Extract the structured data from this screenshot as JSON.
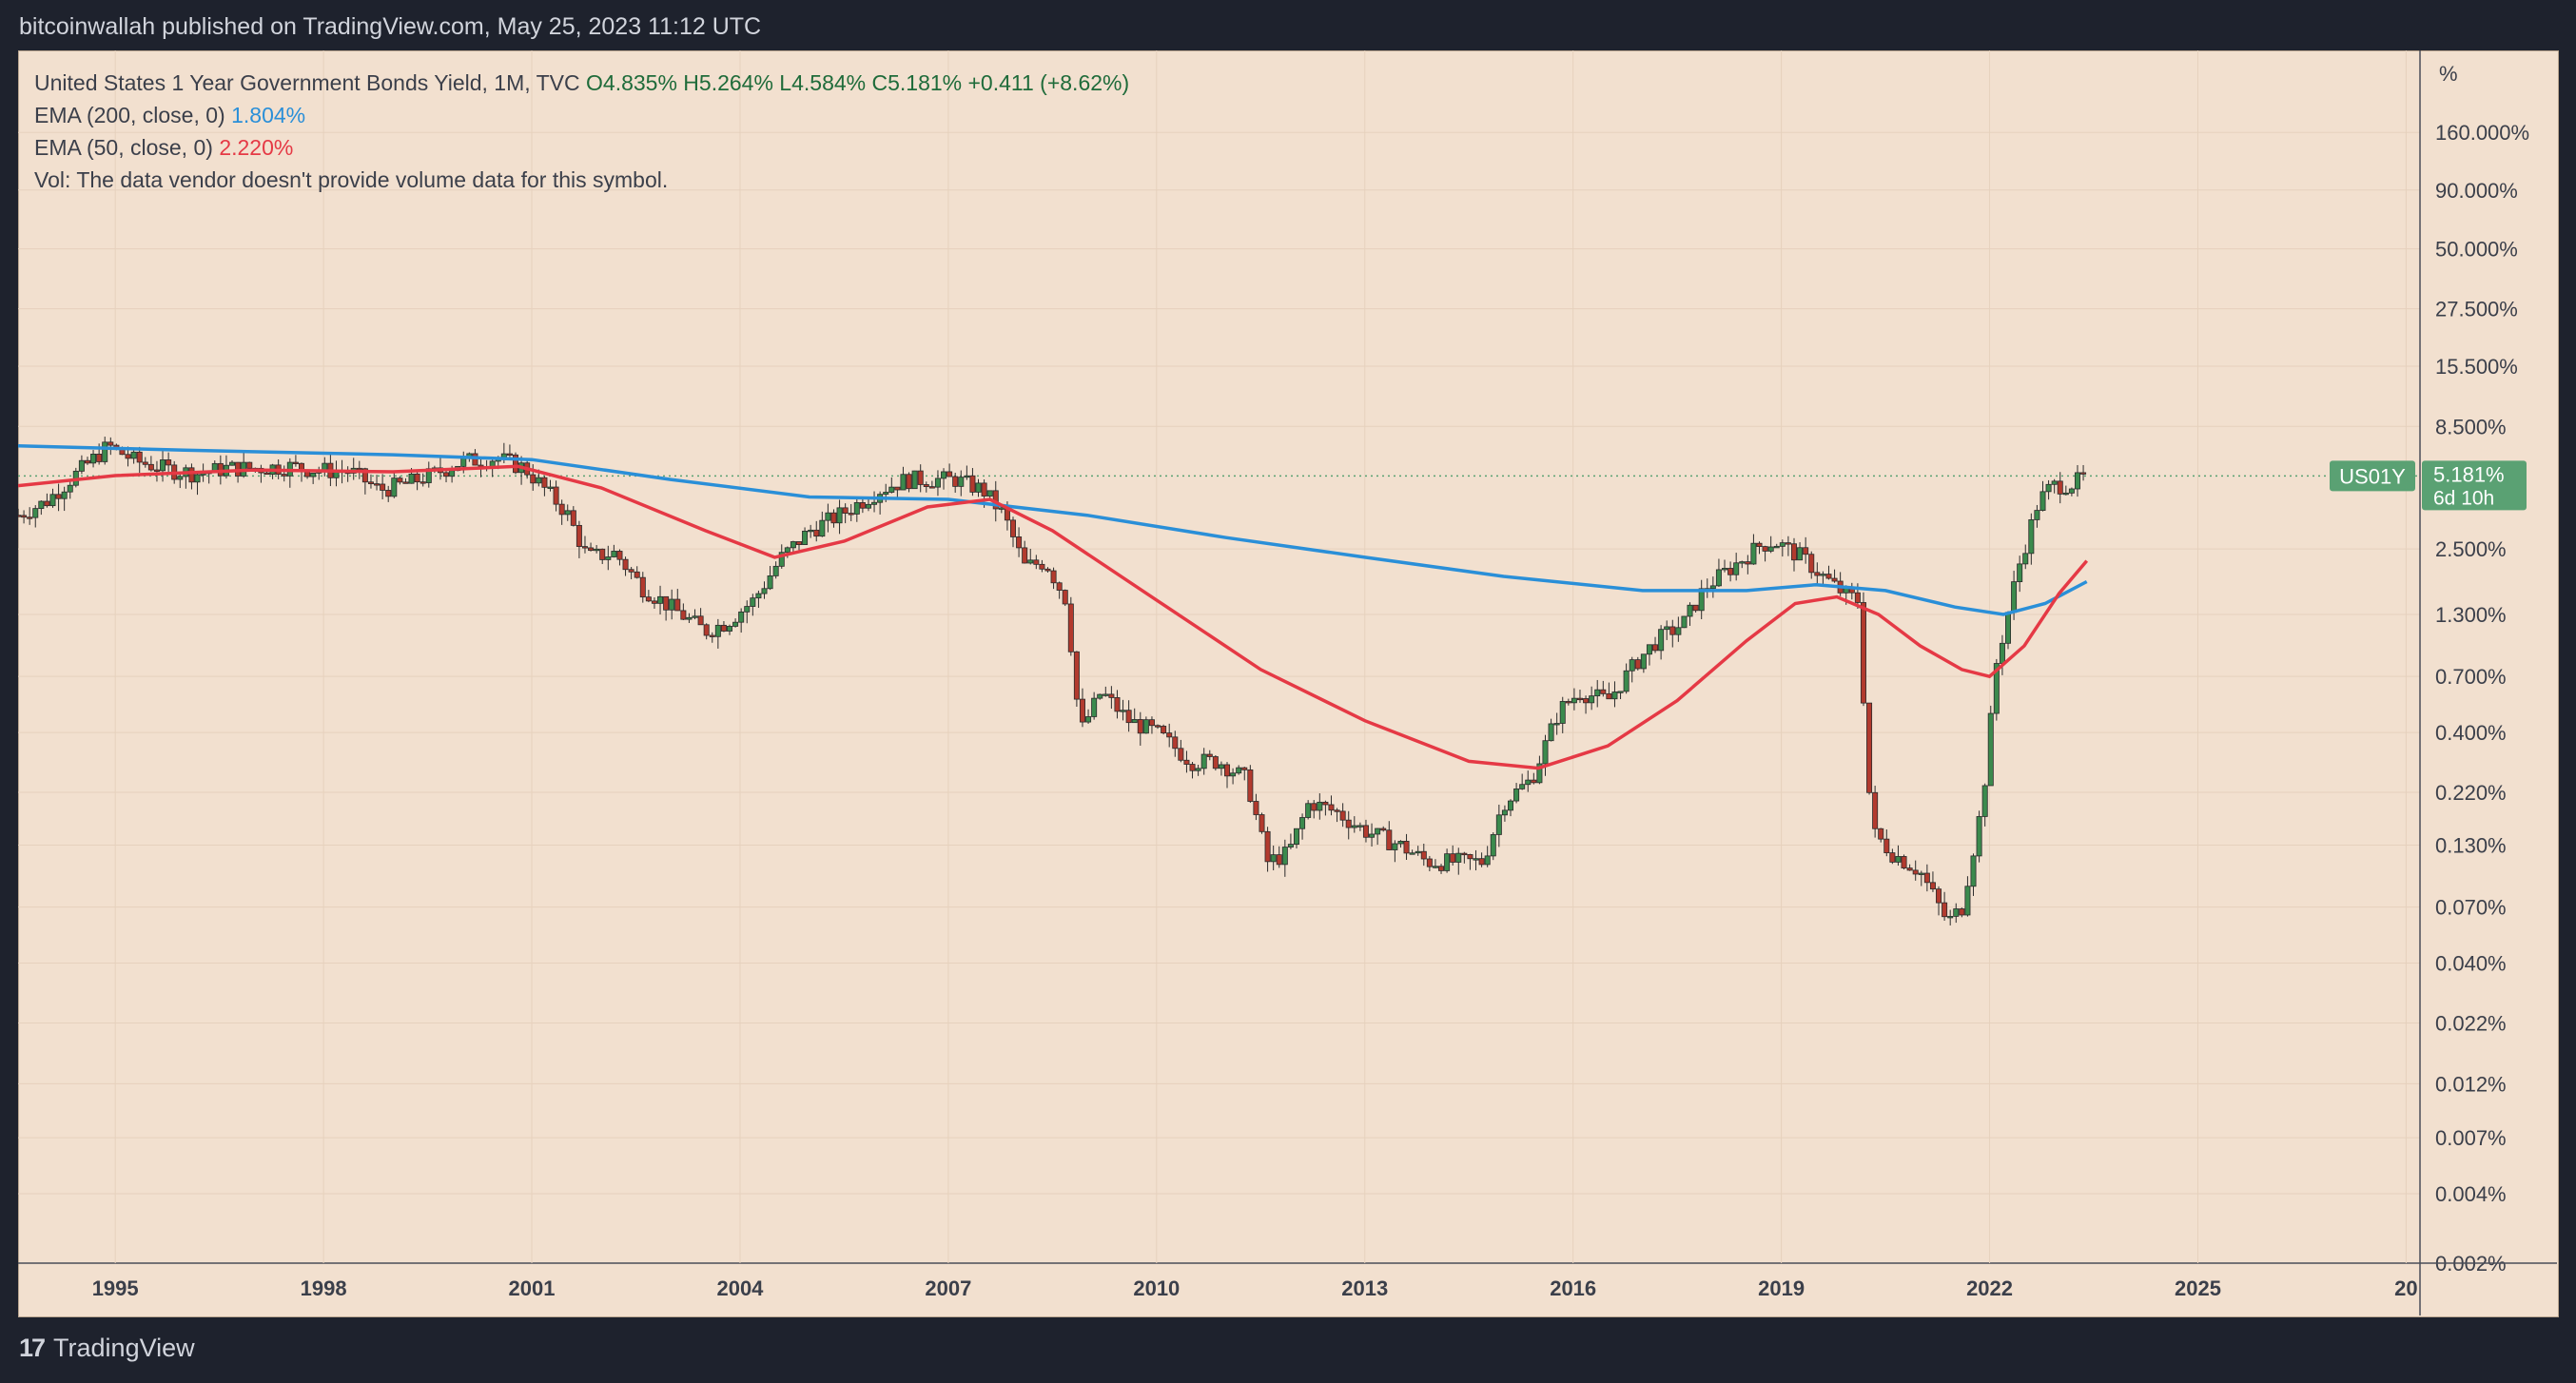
{
  "header": {
    "published": "bitcoinwallah published on TradingView.com, May 25, 2023 11:12 UTC"
  },
  "legend": {
    "symbol_line": "United States 1 Year Government Bonds Yield, 1M, TVC",
    "ohlc": "O4.835%  H5.264%  L4.584%  C5.181%  +0.411 (+8.62%)",
    "ema200_label": "EMA (200, close, 0)",
    "ema200_value": "1.804%",
    "ema50_label": "EMA (50, close, 0)",
    "ema50_value": "2.220%",
    "vol_line": "Vol: The data vendor doesn't provide volume data for this symbol."
  },
  "price_tag": {
    "symbol": "US01Y",
    "value": "5.181%",
    "countdown": "6d 10h"
  },
  "footer": {
    "brand": "TradingView"
  },
  "colors": {
    "up": "#3b8a4d",
    "down": "#b23a2e",
    "ema200": "#2a8fd8",
    "ema50": "#e53945",
    "tag": "#5aa173",
    "background": "#f2e0cf"
  },
  "chart_data": {
    "type": "candlestick",
    "title": "United States 1 Year Government Bonds Yield",
    "interval": "1M",
    "y_scale": "log",
    "y_unit": "%",
    "y_ticks": [
      "160.000%",
      "90.000%",
      "50.000%",
      "27.500%",
      "15.500%",
      "8.500%",
      "2.500%",
      "1.300%",
      "0.700%",
      "0.400%",
      "0.220%",
      "0.130%",
      "0.070%",
      "0.040%",
      "0.022%",
      "0.012%",
      "0.007%",
      "0.004%",
      "0.002%"
    ],
    "x_ticks": [
      "1995",
      "1998",
      "2001",
      "2004",
      "2007",
      "2010",
      "2013",
      "2016",
      "2019",
      "2022",
      "2025",
      "20"
    ],
    "x_range": [
      1993.6,
      2028.2
    ],
    "y_range": [
      0.002,
      300
    ],
    "close": [
      [
        1993.6,
        3.5
      ],
      [
        1994.0,
        4.0
      ],
      [
        1994.5,
        5.5
      ],
      [
        1994.9,
        7.0
      ],
      [
        1995.3,
        6.0
      ],
      [
        1995.8,
        5.5
      ],
      [
        1996.2,
        5.3
      ],
      [
        1996.6,
        5.6
      ],
      [
        1997.0,
        5.6
      ],
      [
        1997.5,
        5.7
      ],
      [
        1997.9,
        5.5
      ],
      [
        1998.4,
        5.4
      ],
      [
        1998.8,
        4.5
      ],
      [
        1999.2,
        4.8
      ],
      [
        1999.6,
        5.3
      ],
      [
        2000.0,
        6.0
      ],
      [
        2000.5,
        6.2
      ],
      [
        2000.9,
        5.6
      ],
      [
        2001.2,
        4.5
      ],
      [
        2001.5,
        3.6
      ],
      [
        2001.8,
        2.3
      ],
      [
        2002.2,
        2.4
      ],
      [
        2002.6,
        1.7
      ],
      [
        2003.0,
        1.4
      ],
      [
        2003.5,
        1.1
      ],
      [
        2003.8,
        1.2
      ],
      [
        2004.2,
        1.5
      ],
      [
        2004.6,
        2.3
      ],
      [
        2005.0,
        3.0
      ],
      [
        2005.5,
        3.6
      ],
      [
        2006.0,
        4.5
      ],
      [
        2006.4,
        5.0
      ],
      [
        2006.8,
        5.0
      ],
      [
        2007.1,
        5.0
      ],
      [
        2007.5,
        4.5
      ],
      [
        2007.8,
        3.5
      ],
      [
        2008.1,
        2.1
      ],
      [
        2008.4,
        2.2
      ],
      [
        2008.7,
        1.5
      ],
      [
        2008.9,
        0.4
      ],
      [
        2009.2,
        0.6
      ],
      [
        2009.6,
        0.45
      ],
      [
        2010.0,
        0.4
      ],
      [
        2010.5,
        0.3
      ],
      [
        2010.9,
        0.3
      ],
      [
        2011.3,
        0.25
      ],
      [
        2011.6,
        0.11
      ],
      [
        2011.9,
        0.12
      ],
      [
        2012.2,
        0.2
      ],
      [
        2012.6,
        0.18
      ],
      [
        2013.0,
        0.15
      ],
      [
        2013.5,
        0.13
      ],
      [
        2013.9,
        0.11
      ],
      [
        2014.3,
        0.11
      ],
      [
        2014.7,
        0.11
      ],
      [
        2015.0,
        0.2
      ],
      [
        2015.4,
        0.25
      ],
      [
        2015.8,
        0.5
      ],
      [
        2016.1,
        0.6
      ],
      [
        2016.5,
        0.55
      ],
      [
        2016.9,
        0.8
      ],
      [
        2017.2,
        1.0
      ],
      [
        2017.6,
        1.2
      ],
      [
        2017.9,
        1.7
      ],
      [
        2018.3,
        2.1
      ],
      [
        2018.7,
        2.6
      ],
      [
        2018.9,
        2.7
      ],
      [
        2019.3,
        2.3
      ],
      [
        2019.6,
        1.9
      ],
      [
        2019.9,
        1.6
      ],
      [
        2020.1,
        1.5
      ],
      [
        2020.3,
        0.15
      ],
      [
        2020.6,
        0.12
      ],
      [
        2021.0,
        0.1
      ],
      [
        2021.4,
        0.06
      ],
      [
        2021.6,
        0.07
      ],
      [
        2021.9,
        0.2
      ],
      [
        2022.1,
        0.8
      ],
      [
        2022.4,
        2.0
      ],
      [
        2022.7,
        4.0
      ],
      [
        2022.9,
        4.7
      ],
      [
        2023.2,
        4.8
      ],
      [
        2023.4,
        5.181
      ]
    ],
    "series": [
      {
        "name": "EMA (200, close, 0)",
        "current": 1.804,
        "points": [
          [
            1993.6,
            7.0
          ],
          [
            1996.0,
            6.7
          ],
          [
            1999.0,
            6.4
          ],
          [
            2001.0,
            6.1
          ],
          [
            2003.0,
            5.0
          ],
          [
            2005.0,
            4.2
          ],
          [
            2007.0,
            4.1
          ],
          [
            2009.0,
            3.5
          ],
          [
            2011.0,
            2.8
          ],
          [
            2013.0,
            2.3
          ],
          [
            2015.0,
            1.9
          ],
          [
            2017.0,
            1.65
          ],
          [
            2018.5,
            1.65
          ],
          [
            2019.5,
            1.75
          ],
          [
            2020.5,
            1.65
          ],
          [
            2021.5,
            1.4
          ],
          [
            2022.2,
            1.3
          ],
          [
            2022.8,
            1.45
          ],
          [
            2023.4,
            1.804
          ]
        ]
      },
      {
        "name": "EMA (50, close, 0)",
        "current": 2.22,
        "points": [
          [
            1993.6,
            4.7
          ],
          [
            1995.0,
            5.2
          ],
          [
            1997.0,
            5.5
          ],
          [
            1999.0,
            5.4
          ],
          [
            2000.8,
            5.7
          ],
          [
            2002.0,
            4.6
          ],
          [
            2003.5,
            3.0
          ],
          [
            2004.5,
            2.3
          ],
          [
            2005.5,
            2.7
          ],
          [
            2006.7,
            3.8
          ],
          [
            2007.6,
            4.1
          ],
          [
            2008.5,
            3.0
          ],
          [
            2010.0,
            1.5
          ],
          [
            2011.5,
            0.75
          ],
          [
            2013.0,
            0.45
          ],
          [
            2014.5,
            0.3
          ],
          [
            2015.5,
            0.28
          ],
          [
            2016.5,
            0.35
          ],
          [
            2017.5,
            0.55
          ],
          [
            2018.5,
            1.0
          ],
          [
            2019.2,
            1.45
          ],
          [
            2019.8,
            1.55
          ],
          [
            2020.4,
            1.3
          ],
          [
            2021.0,
            0.95
          ],
          [
            2021.6,
            0.75
          ],
          [
            2022.0,
            0.7
          ],
          [
            2022.5,
            0.95
          ],
          [
            2023.0,
            1.6
          ],
          [
            2023.4,
            2.22
          ]
        ]
      }
    ]
  }
}
